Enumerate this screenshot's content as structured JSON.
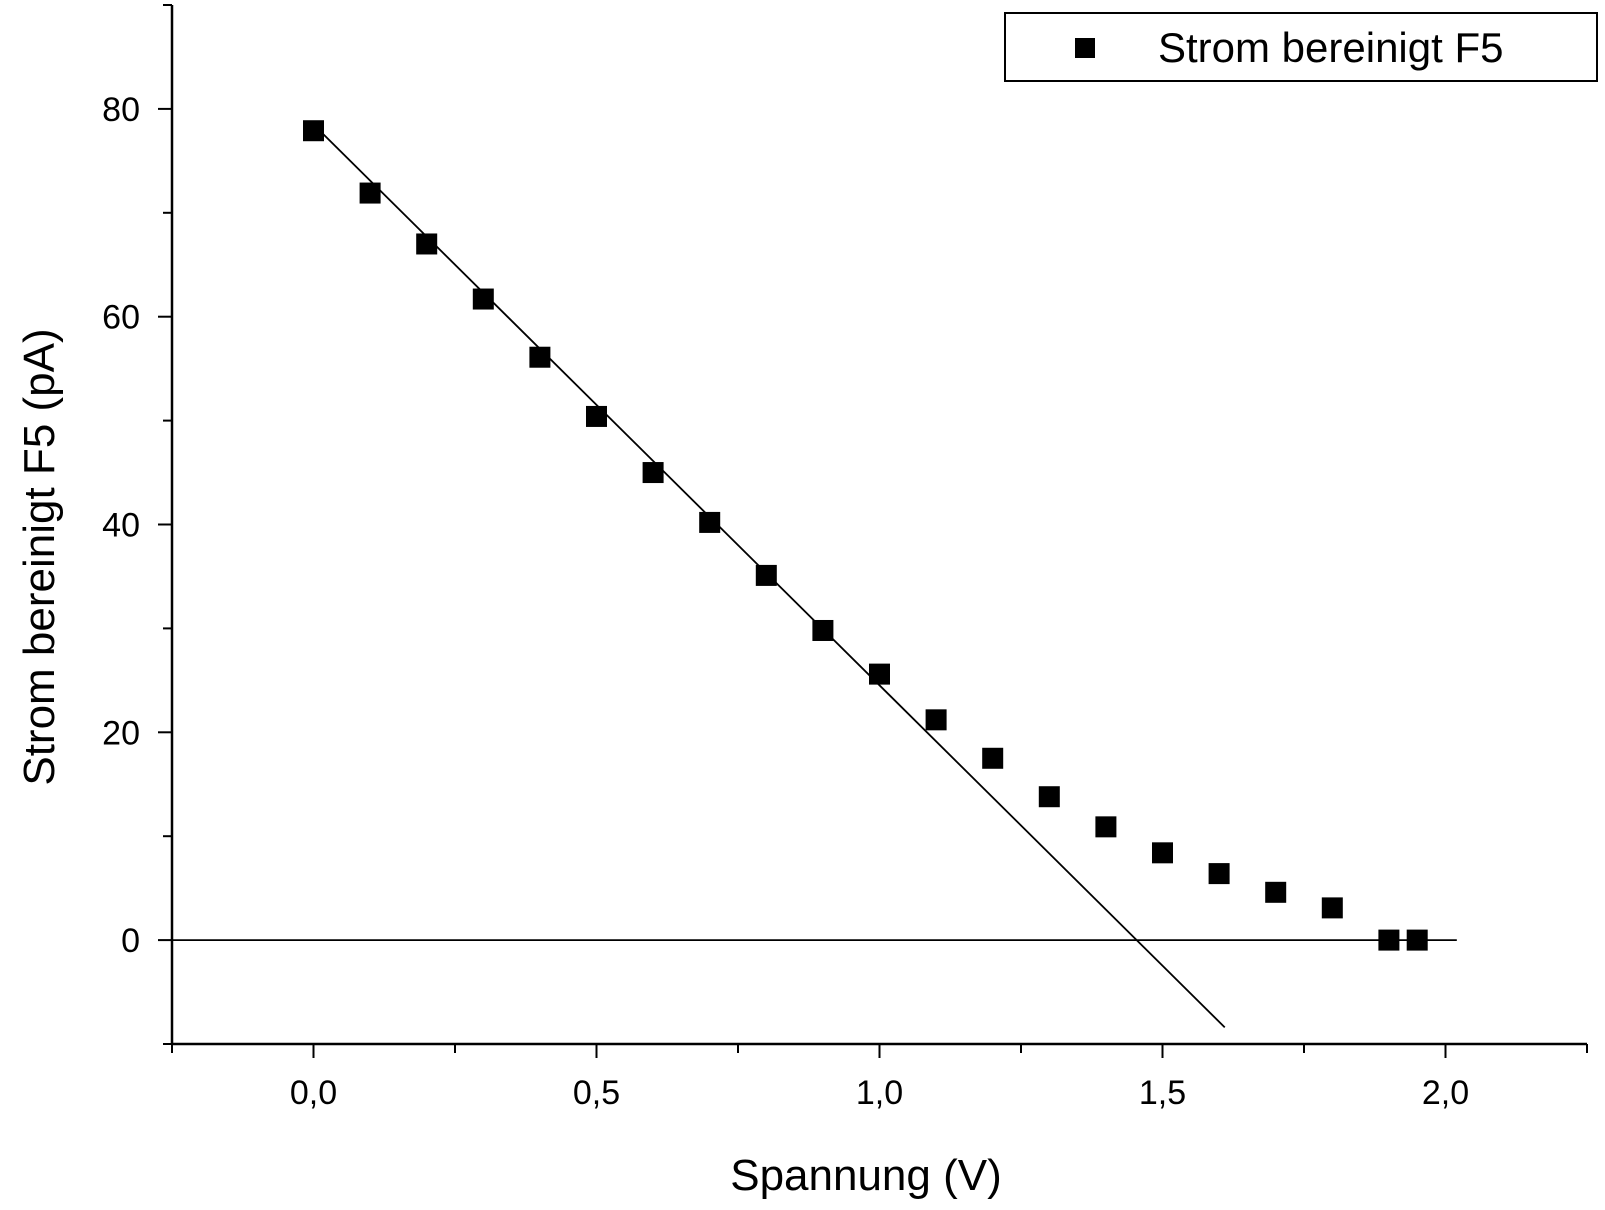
{
  "chart_data": {
    "type": "scatter",
    "title": "",
    "xlabel": "Spannung (V)",
    "ylabel": "Strom bereinigt F5 (pA)",
    "xlim": [
      -0.25,
      2.25
    ],
    "ylim": [
      -10,
      90
    ],
    "x_ticks": [
      0.0,
      0.5,
      1.0,
      1.5,
      2.0
    ],
    "x_tick_labels": [
      "0,0",
      "0,5",
      "1,0",
      "1,5",
      "2,0"
    ],
    "x_minor_step": 0.25,
    "y_ticks": [
      0,
      20,
      40,
      60,
      80
    ],
    "y_tick_labels": [
      "0",
      "20",
      "40",
      "60",
      "80"
    ],
    "y_minor_step": 10,
    "grid": false,
    "legend_position": "top-right",
    "series": [
      {
        "name": "Strom bereinigt F5",
        "marker": "square",
        "color": "#000000",
        "x": [
          0.0,
          0.1,
          0.2,
          0.3,
          0.4,
          0.5,
          0.6,
          0.7,
          0.8,
          0.9,
          1.0,
          1.1,
          1.2,
          1.3,
          1.4,
          1.5,
          1.6,
          1.7,
          1.8,
          1.9,
          1.95
        ],
        "y": [
          77.9,
          71.9,
          67.0,
          61.7,
          56.1,
          50.4,
          45.0,
          40.2,
          35.1,
          29.8,
          25.6,
          21.2,
          17.5,
          13.8,
          10.9,
          8.4,
          6.4,
          4.6,
          3.1,
          0.0,
          0.0
        ]
      }
    ],
    "lines": [
      {
        "kind": "fit",
        "color": "#000000",
        "x": [
          0.0,
          1.61
        ],
        "y": [
          78.5,
          -8.4
        ]
      },
      {
        "kind": "zero",
        "color": "#000000",
        "x": [
          -0.25,
          2.02
        ],
        "y": [
          0.0,
          0.0
        ]
      }
    ]
  }
}
